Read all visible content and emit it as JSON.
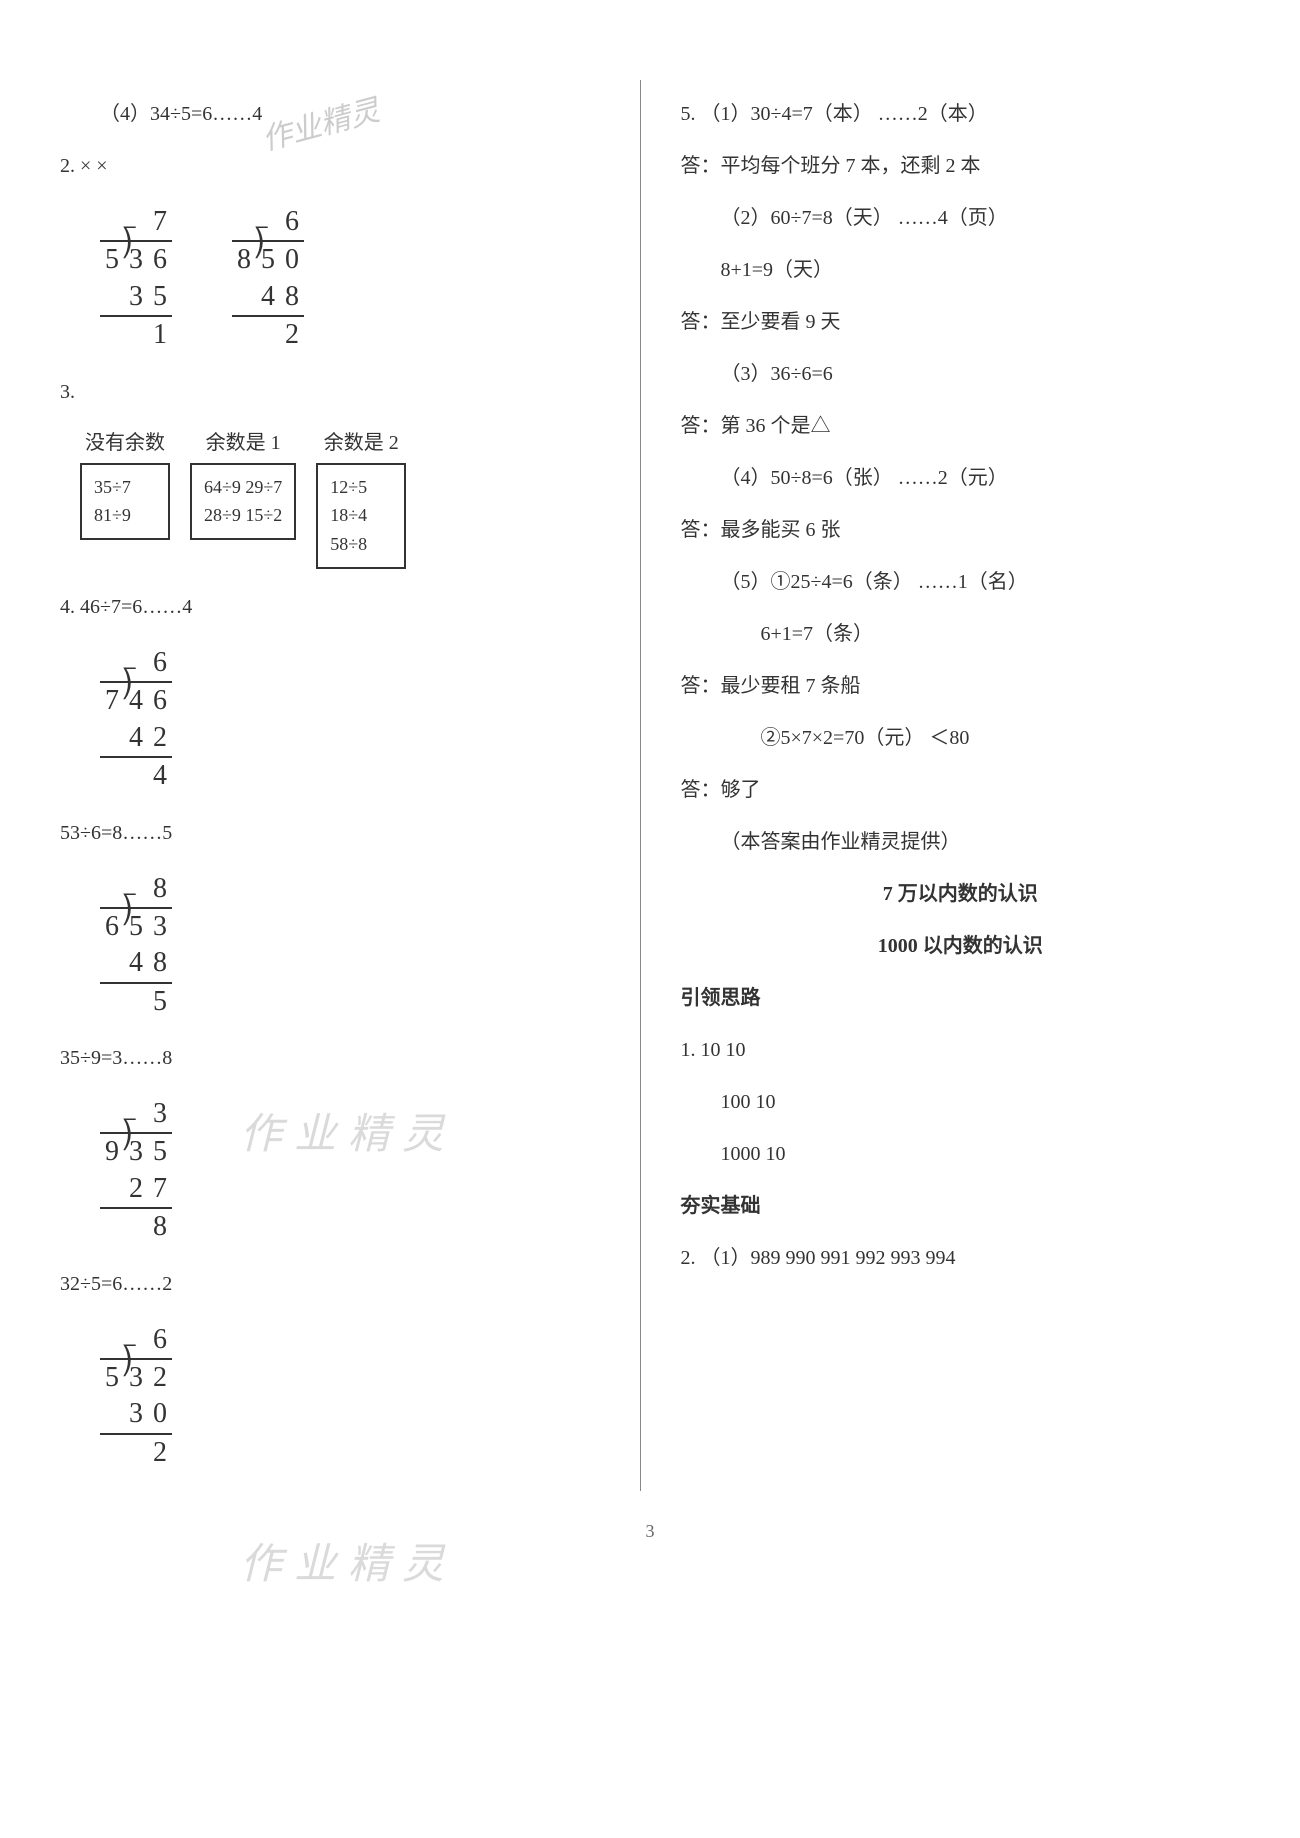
{
  "watermarks": {
    "w1": "作业精灵",
    "w2": "作业精灵",
    "w3": "作业精灵"
  },
  "left": {
    "q1_4": "（4）34÷5=6……4",
    "q2": "2.  ×              ×",
    "longdiv_a": {
      "divisor": "5",
      "dividend": [
        "3",
        "6"
      ],
      "quotient": "7",
      "sub": [
        "3",
        "5"
      ],
      "rem": "1"
    },
    "longdiv_b": {
      "divisor": "8",
      "dividend": [
        "5",
        "0"
      ],
      "quotient": "6",
      "sub": [
        "4",
        "8"
      ],
      "rem": "2"
    },
    "q3_label": "3.",
    "sec3": {
      "headers": [
        "没有余数",
        "余数是 1",
        "余数是 2"
      ],
      "boxes": [
        [
          "35÷7",
          "81÷9"
        ],
        [
          "64÷9   29÷7",
          "28÷9   15÷2"
        ],
        [
          "12÷5",
          "18÷4",
          "58÷8"
        ]
      ]
    },
    "q4_label": "4.  46÷7=6……4",
    "longdiv_c": {
      "divisor": "7",
      "dividend": [
        "4",
        "6"
      ],
      "quotient": "6",
      "sub": [
        "4",
        "2"
      ],
      "rem": "4"
    },
    "eq_d": "53÷6=8……5",
    "longdiv_d": {
      "divisor": "6",
      "dividend": [
        "5",
        "3"
      ],
      "quotient": "8",
      "sub": [
        "4",
        "8"
      ],
      "rem": "5"
    },
    "eq_e": "35÷9=3……8",
    "longdiv_e": {
      "divisor": "9",
      "dividend": [
        "3",
        "5"
      ],
      "quotient": "3",
      "sub": [
        "2",
        "7"
      ],
      "rem": "8"
    },
    "eq_f": "32÷5=6……2",
    "longdiv_f": {
      "divisor": "5",
      "dividend": [
        "3",
        "2"
      ],
      "quotient": "6",
      "sub": [
        "3",
        "0"
      ],
      "rem": "2"
    }
  },
  "right": {
    "lines": [
      "5.  （1）30÷4=7（本） ……2（本）",
      "答：平均每个班分 7 本，还剩 2 本",
      "（2）60÷7=8（天） ……4（页）",
      "8+1=9（天）",
      "答：至少要看 9 天",
      "（3）36÷6=6",
      "答：第 36 个是△",
      "（4）50÷8=6（张） ……2（元）",
      "答：最多能买 6 张",
      "（5）①25÷4=6（条） ……1（名）",
      "6+1=7（条）",
      "答：最少要租 7 条船",
      "②5×7×2=70（元） ＜80",
      "答：够了",
      "（本答案由作业精灵提供）"
    ],
    "chapter_title": "7     万以内数的认识",
    "subtitle": "1000 以内数的认识",
    "section_a": "引领思路",
    "sa_lines": [
      "1.  10     10",
      "100     10",
      "1000     10"
    ],
    "section_b": "夯实基础",
    "sb_line": "2.  （1）989   990   991   992   993   994"
  },
  "page_number": "3"
}
